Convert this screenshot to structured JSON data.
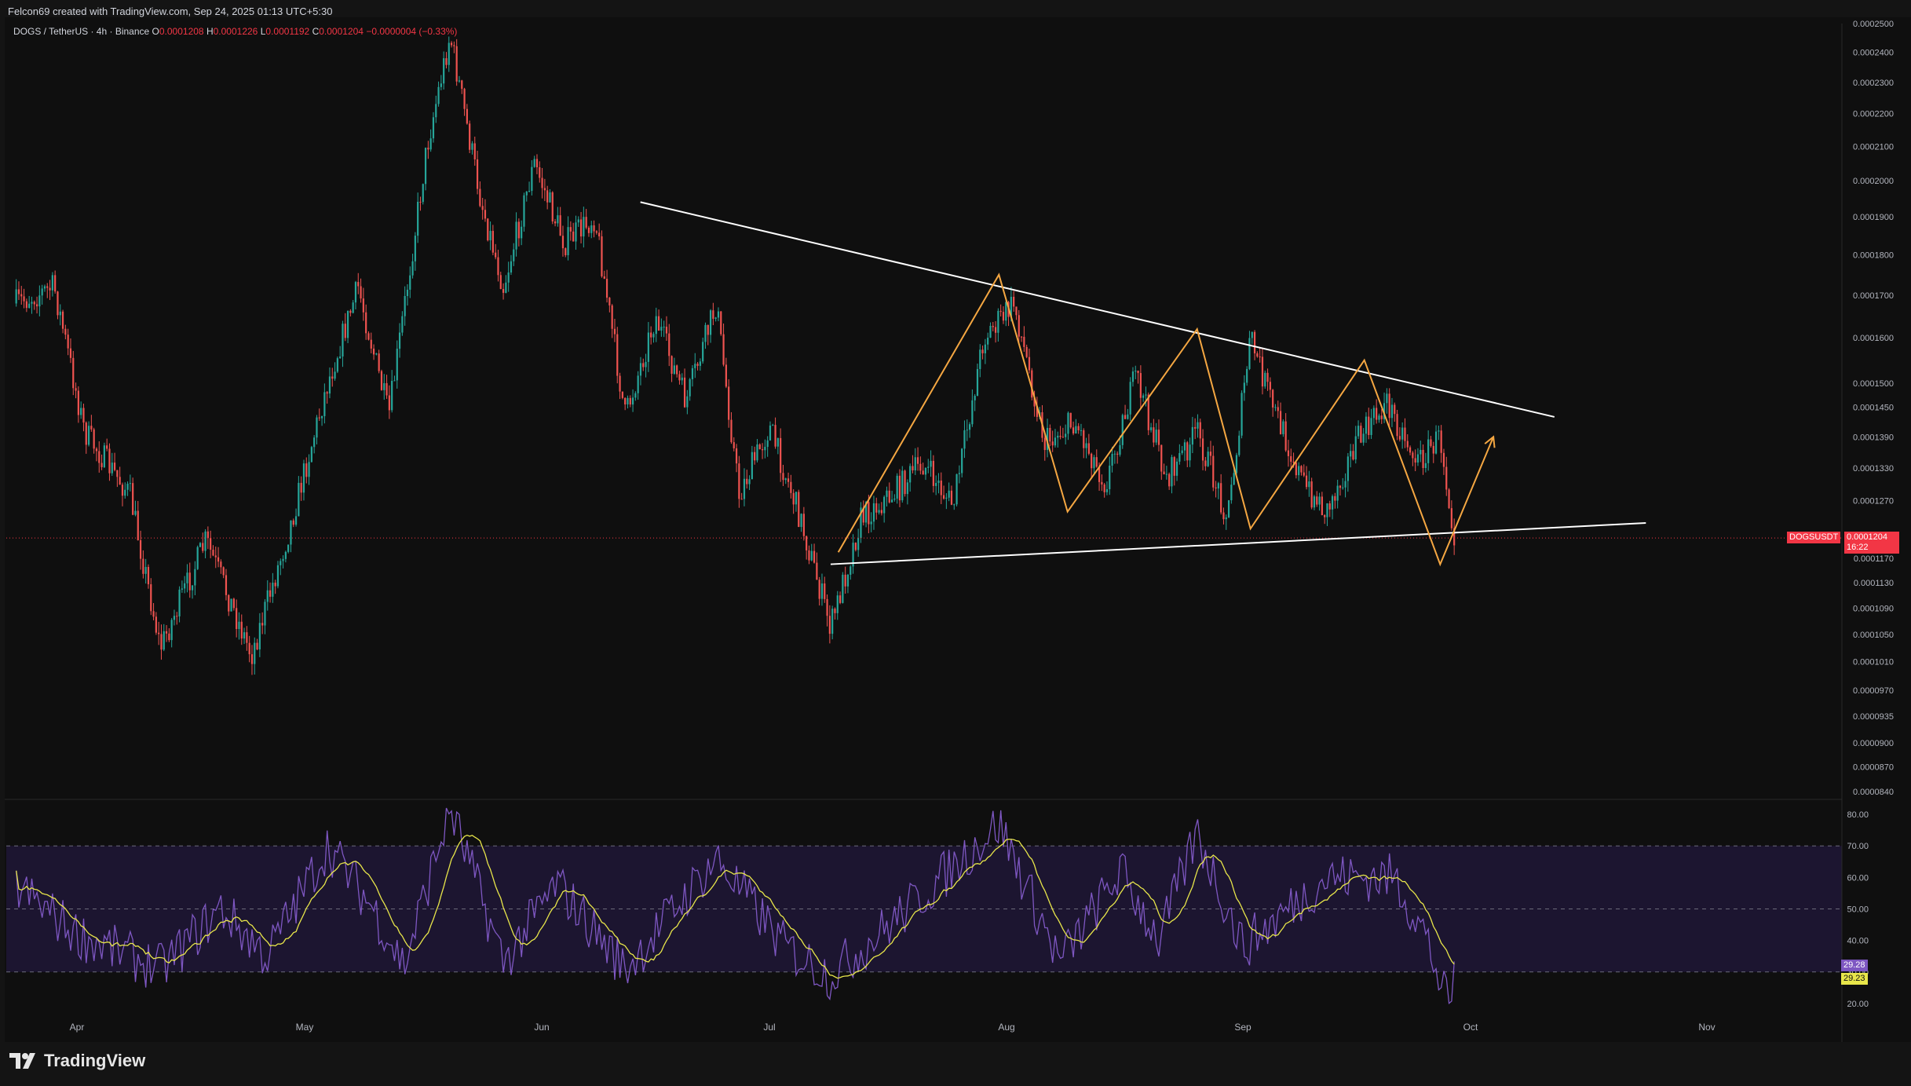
{
  "header": {
    "attribution": "Felcon69 created with TradingView.com, Sep 24, 2025 01:13 UTC+5:30"
  },
  "legend": {
    "symbol": "DOGS / TetherUS · 4h · Binance",
    "open_label": "O",
    "open": "0.0001208",
    "high_label": "H",
    "high": "0.0001226",
    "low_label": "L",
    "low": "0.0001192",
    "close_label": "C",
    "close": "0.0001204",
    "change": "−0.0000004 (−0.33%)"
  },
  "price_tag": {
    "symbol": "DOGSUSDT",
    "price": "0.0001204",
    "countdown": "16:22"
  },
  "rsi_tags": {
    "rsi": "29.28",
    "rsi_ma": "29.23"
  },
  "brand": {
    "name": "TradingView"
  },
  "colors": {
    "background": "#0f0f0f",
    "candle_up": "#26a69a",
    "candle_down": "#ef5350",
    "trendline": "#ffffff",
    "pattern_zigzag": "#f5a742",
    "rsi_line": "#7e57c2",
    "rsi_ma": "#e8e64a",
    "rsi_band": "#1c1530",
    "price_tag": "#f23645",
    "rsi_tag": "#7e57c2",
    "rsi_ma_tag": "#e8e64a"
  },
  "chart_data": [
    {
      "type": "candlestick",
      "symbol": "DOGS / TetherUS",
      "interval": "4h",
      "scale": "log",
      "x_ticks": [
        "Apr",
        "May",
        "Jun",
        "Jul",
        "Aug",
        "Sep",
        "Oct",
        "Nov"
      ],
      "y_ticks": [
        "0.0002500",
        "0.0002400",
        "0.0002300",
        "0.0002200",
        "0.0002100",
        "0.0002000",
        "0.0001900",
        "0.0001800",
        "0.0001700",
        "0.0001600",
        "0.0001500",
        "0.0001450",
        "0.0001390",
        "0.0001330",
        "0.0001270",
        "0.0001170",
        "0.0001130",
        "0.0001090",
        "0.0001050",
        "0.0001010",
        "0.0000970",
        "0.0000935",
        "0.0000900",
        "0.0000870",
        "0.0000840"
      ],
      "ylim": [
        8.4e-05,
        0.00025
      ],
      "last_price": 0.0001204,
      "price_path": [
        {
          "date": "2025-03-24",
          "price": 0.000168
        },
        {
          "date": "2025-03-29",
          "price": 0.000172
        },
        {
          "date": "2025-04-02",
          "price": 0.00014
        },
        {
          "date": "2025-04-08",
          "price": 0.000128
        },
        {
          "date": "2025-04-12",
          "price": 0.000103
        },
        {
          "date": "2025-04-18",
          "price": 0.00012
        },
        {
          "date": "2025-04-24",
          "price": 0.000102
        },
        {
          "date": "2025-04-29",
          "price": 0.000122
        },
        {
          "date": "2025-05-04",
          "price": 0.00015
        },
        {
          "date": "2025-05-08",
          "price": 0.000172
        },
        {
          "date": "2025-05-12",
          "price": 0.000143
        },
        {
          "date": "2025-05-17",
          "price": 0.00021
        },
        {
          "date": "2025-05-20",
          "price": 0.000246
        },
        {
          "date": "2025-05-24",
          "price": 0.000195
        },
        {
          "date": "2025-05-27",
          "price": 0.000172
        },
        {
          "date": "2025-05-31",
          "price": 0.000205
        },
        {
          "date": "2025-06-04",
          "price": 0.000183
        },
        {
          "date": "2025-06-08",
          "price": 0.00019
        },
        {
          "date": "2025-06-12",
          "price": 0.000143
        },
        {
          "date": "2025-06-16",
          "price": 0.000165
        },
        {
          "date": "2025-06-20",
          "price": 0.000146
        },
        {
          "date": "2025-06-24",
          "price": 0.000168
        },
        {
          "date": "2025-06-27",
          "price": 0.000128
        },
        {
          "date": "2025-07-01",
          "price": 0.000141
        },
        {
          "date": "2025-07-05",
          "price": 0.000124
        },
        {
          "date": "2025-07-09",
          "price": 0.000106
        },
        {
          "date": "2025-07-13",
          "price": 0.000124
        },
        {
          "date": "2025-07-17",
          "price": 0.000128
        },
        {
          "date": "2025-07-21",
          "price": 0.000134
        },
        {
          "date": "2025-07-25",
          "price": 0.000126
        },
        {
          "date": "2025-07-29",
          "price": 0.00016
        },
        {
          "date": "2025-08-02",
          "price": 0.000168
        },
        {
          "date": "2025-08-06",
          "price": 0.000138
        },
        {
          "date": "2025-08-10",
          "price": 0.000142
        },
        {
          "date": "2025-08-14",
          "price": 0.00013
        },
        {
          "date": "2025-08-18",
          "price": 0.000152
        },
        {
          "date": "2025-08-22",
          "price": 0.000131
        },
        {
          "date": "2025-08-26",
          "price": 0.00014
        },
        {
          "date": "2025-08-30",
          "price": 0.000124
        },
        {
          "date": "2025-09-02",
          "price": 0.00016
        },
        {
          "date": "2025-09-05",
          "price": 0.000145
        },
        {
          "date": "2025-09-09",
          "price": 0.00013
        },
        {
          "date": "2025-09-12",
          "price": 0.000125
        },
        {
          "date": "2025-09-16",
          "price": 0.000138
        },
        {
          "date": "2025-09-20",
          "price": 0.000146
        },
        {
          "date": "2025-09-24",
          "price": 0.000134
        },
        {
          "date": "2025-09-27",
          "price": 0.000139
        },
        {
          "date": "2025-09-29",
          "price": 0.00012
        }
      ],
      "trendlines": [
        {
          "name": "descending resistance",
          "from": {
            "date": "2025-06-14",
            "price": 0.000194
          },
          "to": {
            "date": "2025-10-12",
            "price": 0.000143
          }
        },
        {
          "name": "rising support",
          "from": {
            "date": "2025-07-09",
            "price": 0.000116
          },
          "to": {
            "date": "2025-10-24",
            "price": 0.000123
          }
        }
      ],
      "pattern_path": [
        {
          "date": "2025-07-10",
          "price": 0.000118
        },
        {
          "date": "2025-07-31",
          "price": 0.000175
        },
        {
          "date": "2025-08-09",
          "price": 0.000125
        },
        {
          "date": "2025-08-26",
          "price": 0.000162
        },
        {
          "date": "2025-09-02",
          "price": 0.000122
        },
        {
          "date": "2025-09-17",
          "price": 0.000155
        },
        {
          "date": "2025-09-27",
          "price": 0.000116
        },
        {
          "date": "2025-10-04",
          "price": 0.000139
        }
      ]
    },
    {
      "type": "line",
      "name": "RSI",
      "y_ticks": [
        "80.00",
        "70.00",
        "60.00",
        "50.00",
        "40.00",
        "30.00",
        "20.00"
      ],
      "ylim": [
        17,
        83
      ],
      "bands": [
        30,
        50,
        70
      ],
      "last_value": 29.28,
      "last_ma": 29.23,
      "path": [
        {
          "date": "2025-03-24",
          "rsi": 57
        },
        {
          "date": "2025-04-01",
          "rsi": 42
        },
        {
          "date": "2025-04-12",
          "rsi": 31
        },
        {
          "date": "2025-04-20",
          "rsi": 50
        },
        {
          "date": "2025-04-26",
          "rsi": 35
        },
        {
          "date": "2025-05-04",
          "rsi": 70
        },
        {
          "date": "2025-05-10",
          "rsi": 50
        },
        {
          "date": "2025-05-14",
          "rsi": 32
        },
        {
          "date": "2025-05-20",
          "rsi": 82
        },
        {
          "date": "2025-05-27",
          "rsi": 33
        },
        {
          "date": "2025-06-03",
          "rsi": 58
        },
        {
          "date": "2025-06-12",
          "rsi": 31
        },
        {
          "date": "2025-06-24",
          "rsi": 66
        },
        {
          "date": "2025-07-03",
          "rsi": 38
        },
        {
          "date": "2025-07-09",
          "rsi": 29
        },
        {
          "date": "2025-07-20",
          "rsi": 52
        },
        {
          "date": "2025-07-31",
          "rsi": 77
        },
        {
          "date": "2025-08-08",
          "rsi": 33
        },
        {
          "date": "2025-08-16",
          "rsi": 62
        },
        {
          "date": "2025-08-21",
          "rsi": 40
        },
        {
          "date": "2025-08-26",
          "rsi": 74
        },
        {
          "date": "2025-09-01",
          "rsi": 38
        },
        {
          "date": "2025-09-12",
          "rsi": 60
        },
        {
          "date": "2025-09-21",
          "rsi": 60
        },
        {
          "date": "2025-09-25",
          "rsi": 42
        },
        {
          "date": "2025-09-28",
          "rsi": 19
        },
        {
          "date": "2025-09-29",
          "rsi": 29.28
        }
      ]
    }
  ]
}
